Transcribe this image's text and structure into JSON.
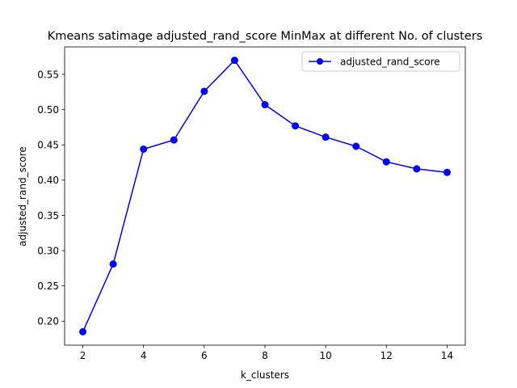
{
  "chart_data": {
    "type": "line",
    "title": "Kmeans satimage adjusted_rand_score MinMax at different No. of clusters",
    "xlabel": "k_clusters",
    "ylabel": "adjusted_rand_score",
    "xlim": [
      1.4,
      14.6
    ],
    "ylim": [
      0.166,
      0.589
    ],
    "xticks": [
      2,
      4,
      6,
      8,
      10,
      12,
      14
    ],
    "xtick_labels": [
      "2",
      "4",
      "6",
      "8",
      "10",
      "12",
      "14"
    ],
    "yticks": [
      0.2,
      0.25,
      0.3,
      0.35,
      0.4,
      0.45,
      0.5,
      0.55
    ],
    "ytick_labels": [
      "0.20",
      "0.25",
      "0.30",
      "0.35",
      "0.40",
      "0.45",
      "0.50",
      "0.55"
    ],
    "grid": false,
    "legend_position": "top-right",
    "series": [
      {
        "name": "adjusted_rand_score",
        "color": "#0000ff",
        "marker": "circle",
        "x": [
          2,
          3,
          4,
          5,
          6,
          7,
          8,
          9,
          10,
          11,
          12,
          13,
          14
        ],
        "y": [
          0.185,
          0.281,
          0.444,
          0.457,
          0.526,
          0.57,
          0.507,
          0.477,
          0.461,
          0.448,
          0.426,
          0.416,
          0.411
        ]
      }
    ]
  }
}
